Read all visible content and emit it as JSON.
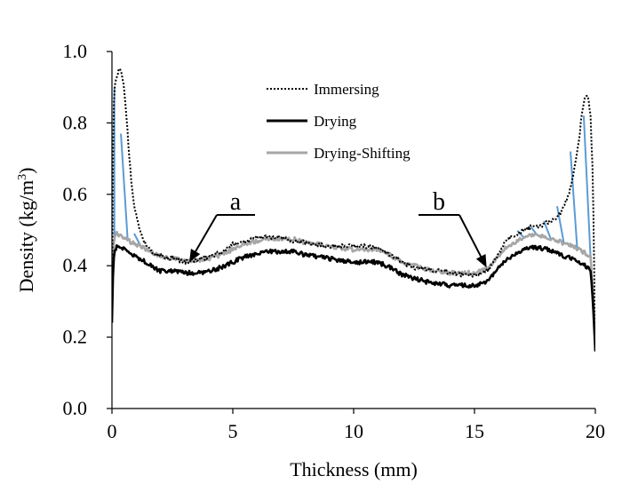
{
  "chart_data": {
    "type": "line",
    "title": "",
    "xlabel": "Thickness  (mm)",
    "ylabel_main": "Density  (kg/m",
    "ylabel_sup": "3",
    "ylabel_close": ")",
    "xlim": [
      0,
      20
    ],
    "ylim": [
      0,
      1.0
    ],
    "x_ticks": [
      0,
      5,
      10,
      15,
      20
    ],
    "x_tick_labels": [
      "0",
      "5",
      "10",
      "15",
      "20"
    ],
    "y_ticks": [
      0,
      0.2,
      0.4,
      0.6,
      0.8,
      1.0
    ],
    "y_tick_labels": [
      "0.0",
      "0.2",
      "0.4",
      "0.6",
      "0.8",
      "1.0"
    ],
    "grid": false,
    "legend_position": "top-center",
    "series": [
      {
        "name": "Immersing",
        "color": "#000000",
        "style": "dotted",
        "x": [
          0.0,
          0.05,
          0.1,
          0.2,
          0.3,
          0.4,
          0.5,
          0.6,
          0.7,
          0.8,
          0.9,
          1.0,
          1.2,
          1.4,
          1.6,
          1.8,
          2.0,
          2.3,
          2.6,
          3.0,
          3.4,
          3.8,
          4.2,
          4.6,
          5.0,
          5.5,
          6.0,
          6.5,
          7.0,
          7.5,
          8.0,
          8.5,
          9.0,
          9.5,
          10.0,
          10.5,
          11.0,
          11.5,
          12.0,
          12.5,
          13.0,
          13.5,
          14.0,
          14.5,
          15.0,
          15.3,
          15.6,
          15.9,
          16.2,
          16.5,
          16.8,
          17.1,
          17.4,
          17.7,
          18.0,
          18.3,
          18.6,
          18.9,
          19.1,
          19.3,
          19.4,
          19.5,
          19.6,
          19.7,
          19.8,
          19.9,
          19.95,
          20.0
        ],
        "y": [
          0.24,
          0.8,
          0.9,
          0.93,
          0.95,
          0.94,
          0.9,
          0.82,
          0.72,
          0.64,
          0.58,
          0.54,
          0.49,
          0.46,
          0.44,
          0.43,
          0.43,
          0.42,
          0.42,
          0.41,
          0.415,
          0.42,
          0.43,
          0.44,
          0.46,
          0.47,
          0.48,
          0.48,
          0.48,
          0.47,
          0.465,
          0.46,
          0.455,
          0.455,
          0.455,
          0.455,
          0.45,
          0.43,
          0.41,
          0.395,
          0.39,
          0.385,
          0.38,
          0.375,
          0.375,
          0.38,
          0.39,
          0.42,
          0.46,
          0.48,
          0.49,
          0.5,
          0.51,
          0.51,
          0.52,
          0.53,
          0.55,
          0.6,
          0.66,
          0.74,
          0.8,
          0.85,
          0.88,
          0.87,
          0.82,
          0.65,
          0.4,
          0.18
        ]
      },
      {
        "name": "Drying",
        "color": "#000000",
        "style": "solid-thick",
        "x": [
          0.0,
          0.05,
          0.1,
          0.2,
          0.4,
          0.6,
          0.8,
          1.0,
          1.3,
          1.6,
          2.0,
          2.5,
          3.0,
          3.5,
          4.0,
          4.5,
          5.0,
          5.5,
          6.0,
          6.5,
          7.0,
          7.5,
          8.0,
          8.5,
          9.0,
          9.5,
          10.0,
          10.5,
          11.0,
          11.5,
          12.0,
          12.5,
          13.0,
          13.5,
          14.0,
          14.5,
          15.0,
          15.3,
          15.6,
          15.9,
          16.2,
          16.5,
          16.8,
          17.1,
          17.4,
          17.7,
          18.0,
          18.4,
          18.8,
          19.2,
          19.6,
          19.8,
          19.9,
          20.0
        ],
        "y": [
          0.24,
          0.4,
          0.44,
          0.455,
          0.45,
          0.44,
          0.43,
          0.425,
          0.415,
          0.4,
          0.385,
          0.385,
          0.38,
          0.38,
          0.385,
          0.395,
          0.41,
          0.425,
          0.435,
          0.44,
          0.44,
          0.44,
          0.43,
          0.425,
          0.42,
          0.415,
          0.41,
          0.41,
          0.41,
          0.395,
          0.375,
          0.365,
          0.355,
          0.35,
          0.345,
          0.345,
          0.345,
          0.35,
          0.36,
          0.385,
          0.41,
          0.425,
          0.435,
          0.445,
          0.45,
          0.45,
          0.445,
          0.435,
          0.425,
          0.415,
          0.4,
          0.39,
          0.3,
          0.16
        ]
      },
      {
        "name": "Drying-Shifting",
        "color": "#a6a6a6",
        "style": "solid-thick",
        "x": [
          0.0,
          0.05,
          0.1,
          0.2,
          0.4,
          0.6,
          0.8,
          1.0,
          1.3,
          1.6,
          2.0,
          2.5,
          3.0,
          3.5,
          4.0,
          4.5,
          5.0,
          5.5,
          6.0,
          6.5,
          7.0,
          7.5,
          8.0,
          8.5,
          9.0,
          9.5,
          10.0,
          10.5,
          11.0,
          11.5,
          12.0,
          12.5,
          13.0,
          13.5,
          14.0,
          14.5,
          15.0,
          15.3,
          15.6,
          15.9,
          16.2,
          16.5,
          16.8,
          17.1,
          17.4,
          17.7,
          18.0,
          18.4,
          18.8,
          19.2,
          19.6,
          19.8,
          19.9,
          20.0
        ],
        "y": [
          0.27,
          0.44,
          0.48,
          0.49,
          0.485,
          0.475,
          0.465,
          0.46,
          0.45,
          0.44,
          0.425,
          0.42,
          0.415,
          0.415,
          0.42,
          0.43,
          0.445,
          0.46,
          0.47,
          0.475,
          0.475,
          0.475,
          0.465,
          0.46,
          0.455,
          0.45,
          0.445,
          0.445,
          0.445,
          0.43,
          0.41,
          0.4,
          0.39,
          0.385,
          0.38,
          0.38,
          0.38,
          0.385,
          0.395,
          0.42,
          0.445,
          0.46,
          0.47,
          0.48,
          0.485,
          0.485,
          0.48,
          0.47,
          0.46,
          0.45,
          0.435,
          0.425,
          0.33,
          0.2
        ]
      }
    ],
    "annotations": [
      {
        "label": "a",
        "target_x": 3.2,
        "target_y": 0.41
      },
      {
        "label": "b",
        "target_x": 15.5,
        "target_y": 0.395
      }
    ],
    "hatch_color": "#5b9bd5",
    "hatch_regions": [
      {
        "x_from": 0.1,
        "x_to": 3.0,
        "upper": "Immersing",
        "lower": "Drying-Shifting"
      },
      {
        "x_from": 16.5,
        "x_to": 19.8,
        "upper": "Immersing",
        "lower": "Drying-Shifting"
      }
    ]
  }
}
